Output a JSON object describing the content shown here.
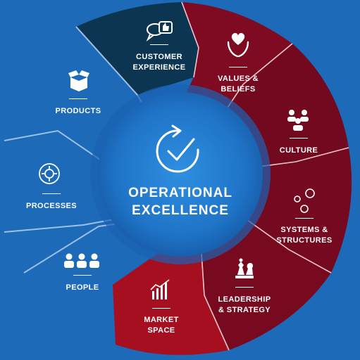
{
  "center": {
    "title": "OPERATIONAL\nEXCELLENCE",
    "icon": "refresh-check-icon"
  },
  "segments": [
    {
      "id": "customer-experience",
      "label": "CUSTOMER\nEXPERIENCE",
      "icon": "chat-thumbs-up-icon",
      "color": "#0c3552"
    },
    {
      "id": "values-beliefs",
      "label": "VALUES &\nBELIEFS",
      "icon": "heart-hands-icon",
      "color": "#7e0b22"
    },
    {
      "id": "culture",
      "label": "CULTURE",
      "icon": "group-icon",
      "color": "#72091e"
    },
    {
      "id": "systems-structures",
      "label": "SYSTEMS &\nSTRUCTURES",
      "icon": "network-nodes-icon",
      "color": "#74091f"
    },
    {
      "id": "leadership-strategy",
      "label": "LEADERSHIP\n& STRATEGY",
      "icon": "chess-pieces-icon",
      "color": "#780a20"
    },
    {
      "id": "market-space",
      "label": "MARKET\nSPACE",
      "icon": "bar-chart-icon",
      "color": "#a50f1f"
    },
    {
      "id": "people",
      "label": "PEOPLE",
      "icon": "people-icon",
      "color": "#1d6ab8"
    },
    {
      "id": "processes",
      "label": "PROCESSES",
      "icon": "gear-cycle-icon",
      "color": "#1d6ab8"
    },
    {
      "id": "products",
      "label": "PRODUCTS",
      "icon": "open-box-icon",
      "color": "#1d6ab8"
    }
  ],
  "colors": {
    "background": "#1d6ab8",
    "divider": "#9cc0e6",
    "text": "#ffffff"
  }
}
